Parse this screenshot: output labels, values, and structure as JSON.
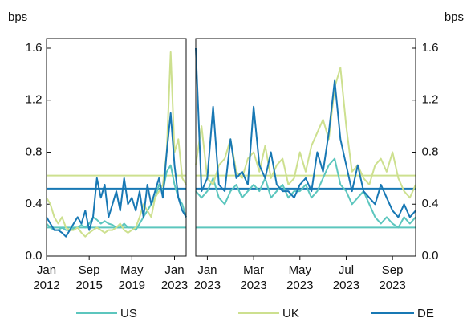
{
  "chart_data": [
    {
      "type": "line",
      "y_label": "bps",
      "categories": [
        "Jan 2012",
        null,
        null,
        null,
        null,
        null,
        null,
        null,
        null,
        null,
        null,
        "Sep 2015",
        null,
        null,
        null,
        null,
        null,
        null,
        null,
        null,
        null,
        null,
        "May 2019",
        null,
        null,
        null,
        null,
        null,
        null,
        null,
        null,
        null,
        null,
        "Jan 2023",
        null,
        null,
        null
      ],
      "ylim": [
        0,
        1.6
      ],
      "yticks": [
        {
          "value": 0,
          "label": "0.0"
        },
        0.4,
        0.8,
        1.2,
        1.6
      ],
      "series": [
        {
          "name": "US",
          "color": "#5cc6be",
          "average": 0.22,
          "values": [
            0.25,
            0.22,
            0.2,
            0.2,
            0.22,
            0.2,
            0.2,
            0.21,
            0.22,
            0.24,
            0.22,
            0.25,
            0.3,
            0.28,
            0.25,
            0.27,
            0.25,
            0.24,
            0.22,
            0.22,
            0.25,
            0.22,
            0.22,
            0.2,
            0.25,
            0.3,
            0.35,
            0.4,
            0.45,
            0.55,
            0.5,
            0.65,
            0.7,
            0.55,
            0.45,
            0.4,
            0.3
          ]
        },
        {
          "name": "UK",
          "color": "#cde08f",
          "average": 0.62,
          "values": [
            0.45,
            0.4,
            0.3,
            0.25,
            0.3,
            0.22,
            0.2,
            0.2,
            0.22,
            0.18,
            0.15,
            0.18,
            0.2,
            0.22,
            0.2,
            0.18,
            0.2,
            0.2,
            0.22,
            0.25,
            0.2,
            0.18,
            0.2,
            0.22,
            0.3,
            0.4,
            0.35,
            0.3,
            0.45,
            0.5,
            0.55,
            0.8,
            1.57,
            0.8,
            0.9,
            0.6,
            0.55
          ]
        },
        {
          "name": "DE",
          "color": "#1878b4",
          "average": 0.52,
          "values": [
            0.3,
            0.25,
            0.2,
            0.2,
            0.18,
            0.15,
            0.2,
            0.25,
            0.3,
            0.25,
            0.35,
            0.2,
            0.3,
            0.6,
            0.45,
            0.55,
            0.3,
            0.4,
            0.5,
            0.35,
            0.6,
            0.4,
            0.45,
            0.35,
            0.5,
            0.3,
            0.55,
            0.4,
            0.5,
            0.6,
            0.45,
            0.8,
            1.1,
            0.7,
            0.45,
            0.35,
            0.3
          ]
        }
      ]
    },
    {
      "type": "line",
      "y_label": "bps",
      "categories": [
        null,
        null,
        "Jan 2023",
        null,
        null,
        null,
        null,
        null,
        null,
        null,
        "Mar 2023",
        null,
        null,
        null,
        null,
        null,
        null,
        null,
        "May 2023",
        null,
        null,
        null,
        null,
        null,
        null,
        null,
        "Jul 2023",
        null,
        null,
        null,
        null,
        null,
        null,
        null,
        "Sep 2023",
        null,
        null,
        null,
        null
      ],
      "ylim": [
        0,
        1.6
      ],
      "yticks": [
        {
          "value": 0,
          "label": "0.0"
        },
        0.4,
        0.8,
        1.2,
        1.6
      ],
      "series": [
        {
          "name": "US",
          "color": "#5cc6be",
          "average": 0.22,
          "values": [
            0.5,
            0.45,
            0.5,
            0.6,
            0.45,
            0.4,
            0.5,
            0.55,
            0.45,
            0.5,
            0.55,
            0.5,
            0.6,
            0.45,
            0.5,
            0.55,
            0.45,
            0.5,
            0.5,
            0.55,
            0.45,
            0.5,
            0.6,
            0.7,
            0.75,
            0.55,
            0.5,
            0.4,
            0.45,
            0.5,
            0.4,
            0.3,
            0.25,
            0.3,
            0.25,
            0.22,
            0.3,
            0.25,
            0.3
          ]
        },
        {
          "name": "UK",
          "color": "#cde08f",
          "average": 0.62,
          "values": [
            0.7,
            1.0,
            0.6,
            0.55,
            0.7,
            0.75,
            0.9,
            0.65,
            0.6,
            0.75,
            0.8,
            0.65,
            0.85,
            0.6,
            0.7,
            0.75,
            0.55,
            0.6,
            0.8,
            0.65,
            0.85,
            0.95,
            1.05,
            0.9,
            1.3,
            1.45,
            1.0,
            0.65,
            0.7,
            0.6,
            0.55,
            0.7,
            0.75,
            0.65,
            0.8,
            0.6,
            0.5,
            0.45,
            0.55
          ]
        },
        {
          "name": "DE",
          "color": "#1878b4",
          "average": 0.52,
          "values": [
            1.6,
            0.5,
            0.6,
            1.15,
            0.55,
            0.5,
            0.9,
            0.6,
            0.65,
            0.55,
            1.15,
            0.7,
            0.6,
            0.8,
            0.55,
            0.5,
            0.5,
            0.45,
            0.55,
            0.6,
            0.5,
            0.8,
            0.65,
            0.95,
            1.35,
            0.9,
            0.7,
            0.5,
            0.7,
            0.5,
            0.45,
            0.4,
            0.55,
            0.45,
            0.35,
            0.3,
            0.4,
            0.3,
            0.35
          ]
        }
      ]
    }
  ]
}
